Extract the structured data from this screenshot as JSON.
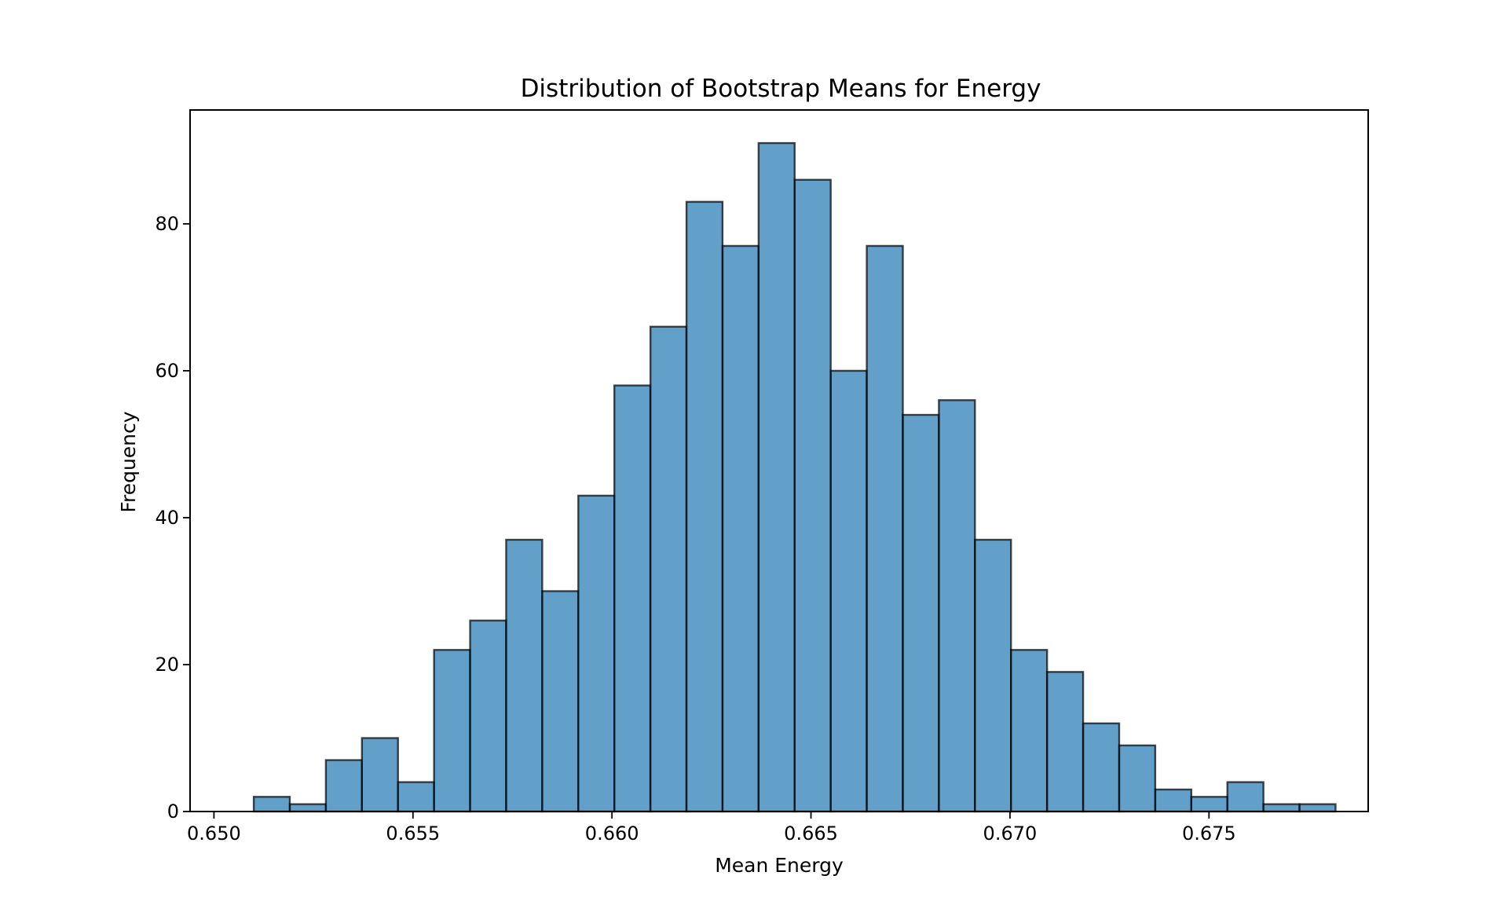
{
  "chart_data": {
    "type": "bar",
    "title": "Distribution of Bootstrap Means for Energy",
    "xlabel": "Mean Energy",
    "ylabel": "Frequency",
    "bin_start": 0.651,
    "bin_width": 0.000906,
    "values": [
      2,
      1,
      7,
      10,
      4,
      22,
      26,
      37,
      30,
      43,
      58,
      66,
      83,
      77,
      91,
      86,
      60,
      77,
      54,
      56,
      37,
      22,
      19,
      12,
      9,
      3,
      2,
      4,
      1,
      1
    ],
    "xlim": [
      0.6494,
      0.679
    ],
    "ylim": [
      0,
      95.5
    ],
    "xticks": [
      0.65,
      0.655,
      0.66,
      0.665,
      0.67,
      0.675
    ],
    "xtick_labels": [
      "0.650",
      "0.655",
      "0.660",
      "0.665",
      "0.670",
      "0.675"
    ],
    "yticks": [
      0,
      20,
      40,
      60,
      80
    ],
    "ytick_labels": [
      "0",
      "20",
      "40",
      "60",
      "80"
    ],
    "grid": false,
    "legend": "none",
    "bar_color": "#1f77b4",
    "edge_color": "#000000"
  }
}
